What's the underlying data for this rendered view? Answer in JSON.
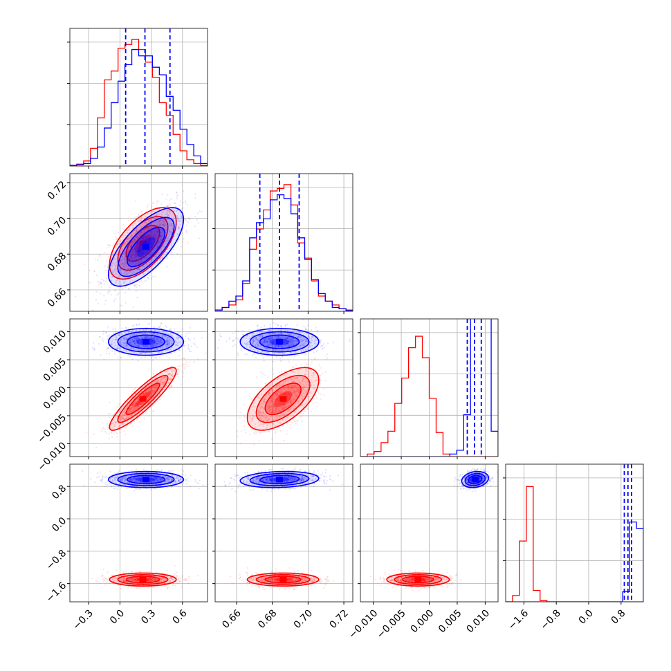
{
  "chart_data": {
    "type": "corner",
    "parameters": [
      {
        "range": [
          -0.48,
          0.84
        ],
        "ticks": [
          -0.3,
          0.0,
          0.3,
          0.6
        ],
        "tick_labels": [
          "−0.3",
          "0.0",
          "0.3",
          "0.6"
        ]
      },
      {
        "range": [
          0.648,
          0.725
        ],
        "ticks": [
          0.66,
          0.68,
          0.7,
          0.72
        ],
        "tick_labels": [
          "0.66",
          "0.68",
          "0.70",
          "0.72"
        ]
      },
      {
        "range": [
          -0.0123,
          0.0123
        ],
        "ticks": [
          -0.01,
          -0.005,
          0.0,
          0.005,
          0.01
        ],
        "tick_labels": [
          "−0.010",
          "−0.005",
          "0.000",
          "0.005",
          "0.010"
        ]
      },
      {
        "range": [
          -2.05,
          1.35
        ],
        "ticks": [
          -1.6,
          -0.8,
          0.0,
          0.8
        ],
        "tick_labels": [
          "−1.6",
          "−0.8",
          "0.0",
          "0.8"
        ]
      }
    ],
    "series": [
      {
        "color": "#ff0000",
        "mean": [
          0.22,
          0.686,
          -0.002,
          -1.5
        ],
        "sd": [
          0.16,
          0.01,
          0.0028,
          0.08
        ],
        "corr": {
          "0-1": 0.6,
          "0-2": 0.9,
          "1-2": 0.6
        }
      },
      {
        "color": "#0000ff",
        "mean": [
          0.25,
          0.684,
          0.0082,
          0.97
        ],
        "sd": [
          0.18,
          0.011,
          0.0012,
          0.1
        ],
        "corr": {
          "0-1": 0.7,
          "1-3": 0.15,
          "2-3": 0.2
        }
      }
    ],
    "quantile_lines": {
      "color": "#0000ff",
      "diag": [
        [
          0.055,
          0.24,
          0.48
        ],
        [
          0.673,
          0.684,
          0.695
        ],
        [
          0.0068,
          0.0081,
          0.0093
        ],
        [
          0.88,
          0.97,
          1.06
        ]
      ]
    },
    "histograms": [
      {
        "edges": [
          -0.48,
          -0.414,
          -0.348,
          -0.282,
          -0.216,
          -0.15,
          -0.084,
          -0.018,
          0.048,
          0.114,
          0.18,
          0.246,
          0.312,
          0.378,
          0.444,
          0.51,
          0.576,
          0.642,
          0.708,
          0.774,
          0.84
        ],
        "series": [
          [
            0.005,
            0.015,
            0.04,
            0.14,
            0.38,
            0.68,
            0.75,
            0.93,
            0.96,
            1.0,
            0.92,
            0.82,
            0.7,
            0.5,
            0.4,
            0.25,
            0.12,
            0.05,
            0.02,
            0.005
          ],
          [
            0.005,
            0.01,
            0.02,
            0.06,
            0.15,
            0.3,
            0.5,
            0.67,
            0.8,
            0.92,
            0.87,
            0.87,
            0.78,
            0.72,
            0.55,
            0.44,
            0.29,
            0.17,
            0.08,
            0.02
          ]
        ]
      },
      {
        "edges": [
          0.648,
          0.6519,
          0.6557,
          0.6596,
          0.6634,
          0.6673,
          0.6711,
          0.675,
          0.6788,
          0.6827,
          0.6865,
          0.6904,
          0.6942,
          0.6981,
          0.7019,
          0.7058,
          0.7096,
          0.7135,
          0.7173,
          0.7212,
          0.725
        ],
        "series": [
          [
            0.01,
            0.03,
            0.05,
            0.09,
            0.22,
            0.49,
            0.65,
            0.8,
            0.95,
            0.97,
            1.0,
            0.84,
            0.54,
            0.42,
            0.24,
            0.12,
            0.08,
            0.05,
            0.02,
            0.01
          ],
          [
            0.01,
            0.03,
            0.08,
            0.12,
            0.24,
            0.58,
            0.7,
            0.73,
            0.88,
            0.92,
            0.89,
            0.77,
            0.58,
            0.41,
            0.25,
            0.14,
            0.08,
            0.03,
            0.02,
            0.005
          ]
        ]
      },
      {
        "edges": [
          -0.0123,
          -0.01107,
          -0.00984,
          -0.00861,
          -0.00738,
          -0.00615,
          -0.00492,
          -0.00369,
          -0.00246,
          -0.00123,
          0.0,
          0.00123,
          0.00246,
          0.00369,
          0.00492,
          0.00615,
          0.00738,
          0.00861,
          0.00984,
          0.01107,
          0.0123
        ],
        "series": [
          [
            0.0,
            0.02,
            0.04,
            0.11,
            0.2,
            0.42,
            0.62,
            0.86,
            0.95,
            0.78,
            0.46,
            0.19,
            0.02,
            0.0,
            0.0,
            0.0,
            0.0,
            0.0,
            0.0,
            0.0
          ],
          [
            0.0,
            0.0,
            0.0,
            0.0,
            0.0,
            0.0,
            0.0,
            0.0,
            0.0,
            0.0,
            0.0,
            0.0,
            0.0,
            0.02,
            0.05,
            0.33,
            1.4,
            1.4,
            1.4,
            0.2
          ]
        ]
      },
      {
        "edges": [
          -2.05,
          -1.88,
          -1.71,
          -1.54,
          -1.37,
          -1.2,
          -1.03,
          -0.86,
          -0.69,
          -0.52,
          -0.35,
          -0.18,
          -0.01,
          0.16,
          0.33,
          0.5,
          0.67,
          0.84,
          1.01,
          1.18,
          1.35
        ],
        "series": [
          [
            0.0,
            0.05,
            0.48,
            0.91,
            0.09,
            0.01,
            0.0,
            0.0,
            0.0,
            0.0,
            0.0,
            0.0,
            0.0,
            0.0,
            0.0,
            0.0,
            0.0,
            0.0,
            0.0,
            0.0
          ],
          [
            0.0,
            0.0,
            0.0,
            0.0,
            0.0,
            0.0,
            0.0,
            0.0,
            0.0,
            0.0,
            0.0,
            0.0,
            0.0,
            0.0,
            0.0,
            0.0,
            0.0,
            0.08,
            0.63,
            0.58
          ]
        ]
      }
    ]
  }
}
